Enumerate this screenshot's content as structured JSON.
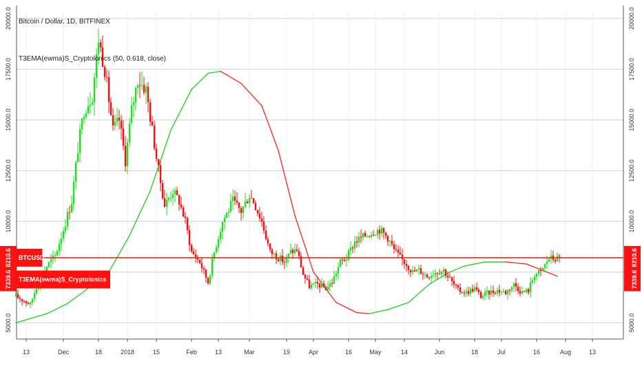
{
  "chart_data": {
    "type": "candlestick",
    "symbol_legend": "Bitcoin / Dollar, 1D, BITFINEX",
    "indicator_legend": "T3EMA(ewma)S_Cryptolonics (50, 0.618, close)",
    "yaxis": {
      "min": 4200,
      "max": 20300,
      "ticks": [
        5000,
        7500,
        10000,
        12500,
        15000,
        17500,
        20000
      ],
      "tick_labels": [
        "5000.0",
        "7500.0",
        "10000.0",
        "12500.0",
        "15000.0",
        "17500.0",
        "20000.0"
      ]
    },
    "xaxis": {
      "tick_labels": [
        "13",
        "Dec",
        "18",
        "2018",
        "15",
        "Feb",
        "13",
        "Mar",
        "19",
        "Apr",
        "16",
        "May",
        "14",
        "Jun",
        "18",
        "Jul",
        "16",
        "Aug",
        "13"
      ],
      "tick_days": [
        0,
        18,
        35,
        49,
        63,
        80,
        93,
        108,
        126,
        139,
        156,
        169,
        183,
        200,
        217,
        230,
        247,
        261,
        274
      ]
    },
    "last_price": {
      "value": 8210.6,
      "label": "8210.6",
      "tag": "BTCUSD"
    },
    "indicator_value": {
      "value": 7339.6,
      "label": "7339.6",
      "tag": "T3EMA(ewma)S_Cryptolonics"
    },
    "indicator_series": {
      "name": "T3EMA(ewma)S_Cryptolonics",
      "points": [
        [
          -5,
          5000
        ],
        [
          10,
          5450
        ],
        [
          20,
          5950
        ],
        [
          30,
          6700
        ],
        [
          40,
          7500
        ],
        [
          50,
          9300
        ],
        [
          60,
          11500
        ],
        [
          70,
          14500
        ],
        [
          80,
          16500
        ],
        [
          88,
          17300
        ],
        [
          94,
          17400
        ],
        [
          104,
          16800
        ],
        [
          114,
          15700
        ],
        [
          122,
          13500
        ],
        [
          130,
          10300
        ],
        [
          139,
          7500
        ],
        [
          150,
          6000
        ],
        [
          160,
          5500
        ],
        [
          166,
          5450
        ],
        [
          175,
          5650
        ],
        [
          185,
          6000
        ],
        [
          195,
          6900
        ],
        [
          205,
          7500
        ],
        [
          212,
          7800
        ],
        [
          222,
          8000
        ],
        [
          232,
          8000
        ],
        [
          242,
          7900
        ],
        [
          252,
          7500
        ],
        [
          257,
          7300
        ]
      ]
    },
    "price_series": {
      "name": "BTCUSD",
      "anchors": [
        [
          -5,
          6300
        ],
        [
          -1,
          6100
        ],
        [
          2,
          5900
        ],
        [
          5,
          6800
        ],
        [
          8,
          7400
        ],
        [
          10,
          7800
        ],
        [
          14,
          8300
        ],
        [
          18,
          9600
        ],
        [
          22,
          11000
        ],
        [
          25,
          13600
        ],
        [
          28,
          15500
        ],
        [
          32,
          16200
        ],
        [
          35,
          19000
        ],
        [
          38,
          17500
        ],
        [
          42,
          14500
        ],
        [
          45,
          15000
        ],
        [
          48,
          13000
        ],
        [
          51,
          15500
        ],
        [
          54,
          17000
        ],
        [
          58,
          16500
        ],
        [
          61,
          14500
        ],
        [
          64,
          12500
        ],
        [
          67,
          10800
        ],
        [
          71,
          11500
        ],
        [
          74,
          11000
        ],
        [
          77,
          10000
        ],
        [
          80,
          8500
        ],
        [
          84,
          8000
        ],
        [
          88,
          7000
        ],
        [
          91,
          8500
        ],
        [
          95,
          10000
        ],
        [
          100,
          11000
        ],
        [
          104,
          10500
        ],
        [
          108,
          11300
        ],
        [
          110,
          11000
        ],
        [
          114,
          10000
        ],
        [
          118,
          8500
        ],
        [
          121,
          8300
        ],
        [
          125,
          8000
        ],
        [
          128,
          8500
        ],
        [
          131,
          8600
        ],
        [
          134,
          7400
        ],
        [
          137,
          6800
        ],
        [
          141,
          6900
        ],
        [
          145,
          6700
        ],
        [
          148,
          7000
        ],
        [
          152,
          8000
        ],
        [
          155,
          8200
        ],
        [
          159,
          9000
        ],
        [
          164,
          9300
        ],
        [
          168,
          9500
        ],
        [
          171,
          9600
        ],
        [
          175,
          9200
        ],
        [
          178,
          8600
        ],
        [
          181,
          8200
        ],
        [
          184,
          7900
        ],
        [
          187,
          7500
        ],
        [
          190,
          7600
        ],
        [
          194,
          7300
        ],
        [
          198,
          7500
        ],
        [
          202,
          7600
        ],
        [
          206,
          7000
        ],
        [
          209,
          6600
        ],
        [
          213,
          6500
        ],
        [
          217,
          6700
        ],
        [
          220,
          6300
        ],
        [
          224,
          6500
        ],
        [
          228,
          6600
        ],
        [
          232,
          6500
        ],
        [
          236,
          6900
        ],
        [
          240,
          6500
        ],
        [
          243,
          6600
        ],
        [
          246,
          7400
        ],
        [
          249,
          7500
        ],
        [
          253,
          8200
        ],
        [
          256,
          8150
        ],
        [
          258,
          8210
        ]
      ]
    }
  }
}
